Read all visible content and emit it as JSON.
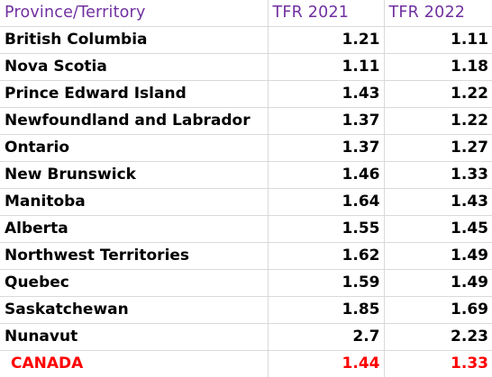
{
  "table": {
    "headers": [
      "Province/Territory",
      "TFR 2021",
      "TFR 2022"
    ],
    "rows": [
      [
        "British Columbia",
        "1.21",
        "1.11"
      ],
      [
        "Nova Scotia",
        "1.11",
        "1.18"
      ],
      [
        "Prince Edward Island",
        "1.43",
        "1.22"
      ],
      [
        "Newfoundland and Labrador",
        "1.37",
        "1.22"
      ],
      [
        "Ontario",
        "1.37",
        "1.27"
      ],
      [
        "New Brunswick",
        "1.46",
        "1.33"
      ],
      [
        "Manitoba",
        "1.64",
        "1.43"
      ],
      [
        "Alberta",
        "1.55",
        "1.45"
      ],
      [
        "Northwest Territories",
        "1.62",
        "1.49"
      ],
      [
        "Quebec",
        "1.59",
        "1.49"
      ],
      [
        "Saskatchewan",
        "1.85",
        "1.69"
      ],
      [
        "Nunavut",
        "2.7",
        "2.23"
      ]
    ],
    "total": [
      "CANADA",
      "1.44",
      "1.33"
    ]
  },
  "colors": {
    "header_text": "#7030a0",
    "total_text": "#ff0000",
    "body_text": "#000000",
    "grid": "#d9d9d9"
  }
}
